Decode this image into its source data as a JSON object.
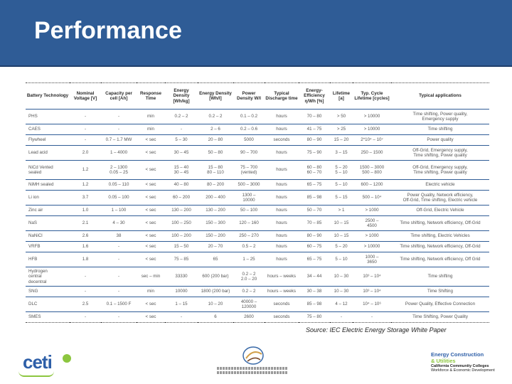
{
  "slide": {
    "title": "Performance",
    "source": "Source: IEC Electric Energy Storage White Paper"
  },
  "table": {
    "headers": [
      "Battery Technology",
      "Nominal Voltage [V]",
      "Capacity per cell [Ah]",
      "Response Time",
      "Energy Density [Wh/kg]",
      "Energy Density [Wh/l]",
      "Power Density W/l",
      "Typical Discharge time",
      "Energy-Efficiency η/Wh [%]",
      "Lifetime [a]",
      "Typ. Cycle Lifetime [cycles]",
      "Typical applications"
    ],
    "rows": [
      [
        "PHS",
        "-",
        "-",
        "min",
        "0.2 – 2",
        "0.2 – 2",
        "0.1 – 0.2",
        "hours",
        "70 – 80",
        "> 50",
        "> 10000",
        "Time shifting, Power quality,\nEmergency supply"
      ],
      [
        "CAES",
        "-",
        "-",
        "min",
        "-",
        "2 – 6",
        "0.2 – 0.6",
        "hours",
        "41 – 75",
        "> 25",
        "> 10000",
        "Time shifting"
      ],
      [
        "Flywheel",
        "-",
        "0.7 – 1.7 MW",
        "< sec",
        "5 – 30",
        "20 – 80",
        "5000",
        "seconds",
        "80 – 90",
        "15 – 20",
        "2*10⁴ – 10⁷",
        "Power quality"
      ],
      [
        "Lead acid",
        "2.0",
        "1 – 4000",
        "< sec",
        "30 – 45",
        "50 – 80",
        "90 – 700",
        "hours",
        "75 – 90",
        "3 – 15",
        "250 – 1500",
        "Off-Grid, Emergency supply,\nTime shifting, Power quality"
      ],
      [
        "NiCd Vented\nsealed",
        "1.2",
        "2 – 1300\n0.05 – 25",
        "< sec",
        "15 – 40\n30 – 45\n",
        "15 – 80\n80 – 110\n",
        "75 – 700\n(vented)",
        "hours",
        "60 – 80\n60 – 70",
        "5 – 20\n5 – 10",
        "1500 – 3000\n500 – 800",
        "Off-Grid, Emergency supply,\nTime shifting, Power quality"
      ],
      [
        "NiMH sealed",
        "1.2",
        "0.05 – 110",
        "< sec",
        "40 – 80",
        "80 – 200",
        "500 – 3000",
        "hours",
        "65 – 75",
        "5 – 10",
        "600 – 1200",
        "Electric vehicle"
      ],
      [
        "Li ion",
        "3.7",
        "0.05 – 100",
        "< sec",
        "60 – 200",
        "200 – 400",
        "1300 –\n10000",
        "hours",
        "85 – 98",
        "5 – 15",
        "500 – 10⁴",
        "Power Quality, Network efficiency,\nOff-Grid, Time shifting, Electric vehicle"
      ],
      [
        "Zinc air",
        "1.0",
        "1 – 100",
        "< sec",
        "130 – 200",
        "130 – 200",
        "50 – 100",
        "hours",
        "50 – 70",
        "> 1",
        "> 1000",
        "Off-Grid, Electric Vehicle"
      ],
      [
        "NaS",
        "2.1",
        "4 – 30",
        "< sec",
        "100 – 250",
        "150 – 300",
        "120 – 160",
        "hours",
        "70 – 85",
        "10 – 15",
        "2500 –\n4500",
        "Time shifting, Network efficiency, Off-Grid"
      ],
      [
        "NaNiCl",
        "2.6",
        "38",
        "< sec",
        "100 – 200",
        "150 – 200",
        "250 – 270",
        "hours",
        "80 – 90",
        "10 – 15",
        "> 1000",
        "Time shifting, Electric Vehicles"
      ],
      [
        "VRFB",
        "1.6",
        "-",
        "< sec",
        "15 – 50",
        "20 – 70",
        "0.5 – 2",
        "hours",
        "60 – 75",
        "5 – 20",
        "> 10000",
        "Time shifting, Network efficiency, Off-Grid"
      ],
      [
        "HFB",
        "1.8",
        "-",
        "< sec",
        "75 – 85",
        "65",
        "1 – 25",
        "hours",
        "65 – 75",
        "5 – 10",
        "1000 –\n3650",
        "Time shifting, Network efficiency, Off Grid"
      ],
      [
        "Hydrogen\ncentral\ndecentral",
        "-",
        "-",
        "sec – min",
        "33330",
        "600 (200 bar)",
        "0.2 – 2\n2.0 – 20",
        "hours – weeks",
        "34 – 44",
        "10 – 30",
        "10³ – 10⁴",
        "Time shifting"
      ],
      [
        "SNG",
        "-",
        "-",
        "min",
        "10000",
        "1800 (200 bar)",
        "0.2 – 2",
        "hours – weeks",
        "30 – 38",
        "10 – 30",
        "10³ – 10⁴",
        "Time Shifting"
      ],
      [
        "DLC",
        "2.5",
        "0.1 – 1500 F",
        "< sec",
        "1 – 15",
        "10 – 20",
        "40000 –\n120000",
        "seconds",
        "85 – 98",
        "4 – 12",
        "10⁴ – 10⁶",
        "Power Quality, Effective Connection"
      ],
      [
        "SMES",
        "-",
        "-",
        "< sec",
        "-",
        "6",
        "2600",
        "seconds",
        "75 – 80",
        "-",
        "-",
        "Time Shifting, Power Quality"
      ]
    ]
  },
  "logos": {
    "ceti_word": "ceti",
    "ecu_line1": "Energy Construction",
    "ecu_line2": "& Utilities",
    "ecu_line3": "California Community Colleges",
    "ecu_line4": "Workforce & Economic Development"
  },
  "colors": {
    "header_bg": "#2f5c96",
    "accent_green": "#8cc63f",
    "brand_blue": "#2e5fa8"
  }
}
